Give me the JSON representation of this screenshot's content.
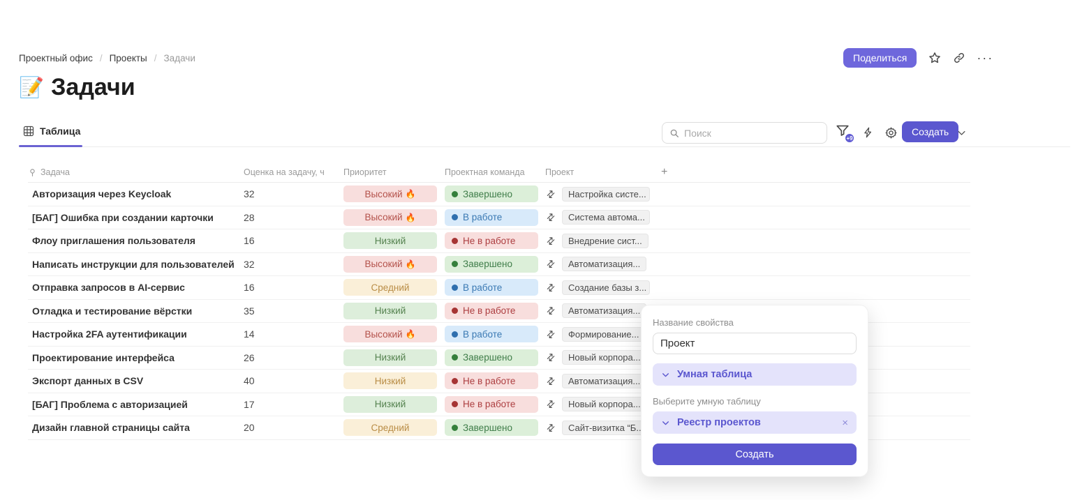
{
  "breadcrumb": {
    "items": [
      "Проектный офис",
      "Проекты",
      "Задачи"
    ],
    "separator": "/"
  },
  "header_actions": {
    "share_label": "Поделиться",
    "more_icon": "···"
  },
  "page": {
    "icon": "📝",
    "title": "Задачи"
  },
  "view_bar": {
    "tab_label": "Таблица",
    "search_placeholder": "Поиск",
    "filter_badge": "+9",
    "create_label": "Создать"
  },
  "icons": {
    "flame": "🔥",
    "relation": "⇄"
  },
  "colors": {
    "accent": "#5b57cf",
    "accent_light_bg": "#e4e3fb",
    "priority": {
      "red": {
        "bg": "#f8dedd",
        "fg": "#b4524b"
      },
      "green": {
        "bg": "#ddeedb",
        "fg": "#55824f"
      },
      "orange": {
        "bg": "#faefd8",
        "fg": "#b98d46"
      }
    },
    "status": {
      "green": {
        "bg": "#dcefd9",
        "fg": "#3f7d49",
        "dot": "#35803c"
      },
      "blue": {
        "bg": "#d8eafa",
        "fg": "#3a79b3",
        "dot": "#2f6fae"
      },
      "red": {
        "bg": "#f8dedd",
        "fg": "#ad3f41",
        "dot": "#a63434"
      }
    }
  },
  "table": {
    "columns": [
      "Задача",
      "Оценка на задачу, ч",
      "Приоритет",
      "Проектная команда",
      "Проект"
    ],
    "add_column_label": "+",
    "rows": [
      {
        "task": "Авторизация через Keycloak",
        "estimate": "32",
        "priority": {
          "label": "Высокий",
          "flame": true,
          "color": "red"
        },
        "status": {
          "label": "Завершено",
          "color": "green"
        },
        "project": "Настройка систе..."
      },
      {
        "task": "[БАГ] Ошибка при создании карточки",
        "estimate": "28",
        "priority": {
          "label": "Высокий",
          "flame": true,
          "color": "red"
        },
        "status": {
          "label": "В работе",
          "color": "blue"
        },
        "project": "Система автома..."
      },
      {
        "task": "Флоу приглашения пользователя",
        "estimate": "16",
        "priority": {
          "label": "Низкий",
          "flame": false,
          "color": "green"
        },
        "status": {
          "label": "Не в работе",
          "color": "red"
        },
        "project": "Внедрение сист..."
      },
      {
        "task": "Написать инструкции для пользователей",
        "estimate": "32",
        "priority": {
          "label": "Высокий",
          "flame": true,
          "color": "red"
        },
        "status": {
          "label": "Завершено",
          "color": "green"
        },
        "project": "Автоматизация..."
      },
      {
        "task": "Отправка запросов в AI-сервис",
        "estimate": "16",
        "priority": {
          "label": "Средний",
          "flame": false,
          "color": "orange"
        },
        "status": {
          "label": "В работе",
          "color": "blue"
        },
        "project": "Создание базы з..."
      },
      {
        "task": "Отладка и тестирование вёрстки",
        "estimate": "35",
        "priority": {
          "label": "Низкий",
          "flame": false,
          "color": "green"
        },
        "status": {
          "label": "Не в работе",
          "color": "red"
        },
        "project": "Автоматизация..."
      },
      {
        "task": "Настройка 2FA аутентификации",
        "estimate": "14",
        "priority": {
          "label": "Высокий",
          "flame": true,
          "color": "red"
        },
        "status": {
          "label": "В работе",
          "color": "blue"
        },
        "project": "Формирование..."
      },
      {
        "task": "Проектирование интерфейса",
        "estimate": "26",
        "priority": {
          "label": "Низкий",
          "flame": false,
          "color": "green"
        },
        "status": {
          "label": "Завершено",
          "color": "green"
        },
        "project": "Новый корпора..."
      },
      {
        "task": "Экспорт данных в CSV",
        "estimate": "40",
        "priority": {
          "label": "Низкий",
          "flame": false,
          "color": "orange"
        },
        "status": {
          "label": "Не в работе",
          "color": "red"
        },
        "project": "Автоматизация..."
      },
      {
        "task": "[БАГ] Проблема с авторизацией",
        "estimate": "17",
        "priority": {
          "label": "Низкий",
          "flame": false,
          "color": "green"
        },
        "status": {
          "label": "Не в работе",
          "color": "red"
        },
        "project": "Новый корпора..."
      },
      {
        "task": "Дизайн главной страницы сайта",
        "estimate": "20",
        "priority": {
          "label": "Средний",
          "flame": false,
          "color": "orange"
        },
        "status": {
          "label": "Завершено",
          "color": "green"
        },
        "project": "Сайт-визитка “Б..."
      }
    ]
  },
  "popup": {
    "name_label": "Название свойства",
    "name_value": "Проект",
    "type_value": "Умная таблица",
    "table_label": "Выберите умную таблицу",
    "table_value": "Реестр проектов",
    "close_icon": "×",
    "create_label": "Создать"
  }
}
